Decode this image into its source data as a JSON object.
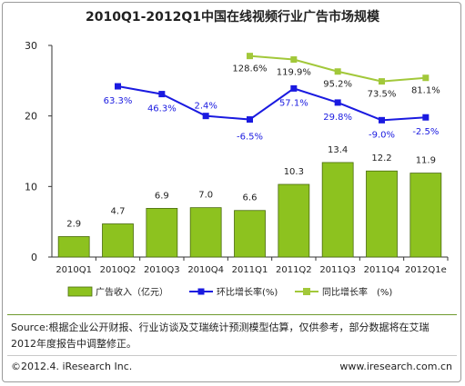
{
  "title": "2010Q1-2012Q1中国在线视频行业广告市场规模",
  "chart_data": {
    "type": "bar",
    "categories": [
      "2010Q1",
      "2010Q2",
      "2010Q3",
      "2010Q4",
      "2011Q1",
      "2011Q2",
      "2011Q3",
      "2011Q4",
      "2012Q1e"
    ],
    "ylim": [
      0,
      30
    ],
    "yticks": [
      0,
      10,
      20,
      30
    ],
    "series": [
      {
        "name": "广告收入（亿元）",
        "kind": "bar",
        "color": "#8dc21f",
        "values": [
          2.9,
          4.7,
          6.9,
          7.0,
          6.6,
          10.3,
          13.4,
          12.2,
          11.9
        ],
        "labels": [
          "2.9",
          "4.7",
          "6.9",
          "7.0",
          "6.6",
          "10.3",
          "13.4",
          "12.2",
          "11.9"
        ]
      },
      {
        "name": "环比增长率(%)",
        "kind": "line",
        "color": "#1a1ae0",
        "plotted": [
          null,
          24.2,
          23.1,
          20.0,
          19.5,
          23.9,
          21.9,
          19.4,
          19.8
        ],
        "labels": [
          null,
          "63.3%",
          "46.3%",
          "2.4%",
          "-6.5%",
          "57.1%",
          "29.8%",
          "-9.0%",
          "-2.5%"
        ]
      },
      {
        "name": "同比增长率　(%)",
        "kind": "line",
        "color": "#a2c83a",
        "plotted": [
          null,
          null,
          null,
          null,
          28.5,
          28.0,
          26.3,
          24.9,
          25.4
        ],
        "labels": [
          null,
          null,
          null,
          null,
          "128.6%",
          "119.9%",
          "95.2%",
          "73.5%",
          "81.1%"
        ]
      }
    ]
  },
  "footer": {
    "source": "Source:根据企业公开财报、行业访谈及艾瑞统计预测模型估算，仅供参考，部分数据将在艾瑞2012年度报告中调整修正。",
    "copyright": "©2012.4.  iResearch Inc.",
    "website": "www.iresearch.com.cn"
  }
}
